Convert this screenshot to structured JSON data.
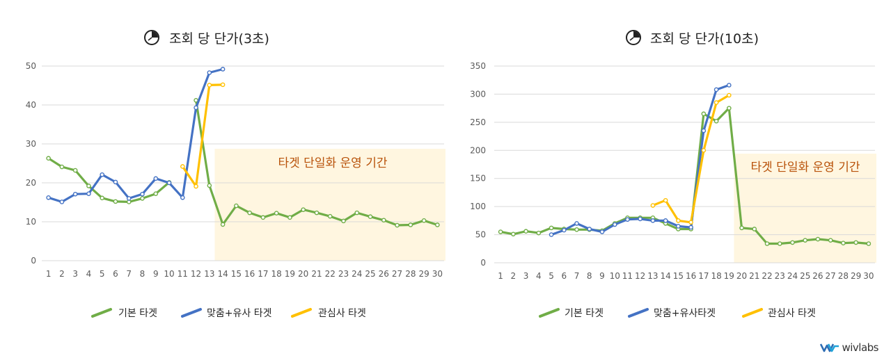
{
  "brand": {
    "logo_icon": "wv-logo-icon",
    "text": "wivlabs"
  },
  "colors": {
    "green": "#70AD47",
    "blue": "#4472C4",
    "yellow": "#FFC000",
    "band": "#FFF6E0",
    "band_text": "#B8520A",
    "grid": "#D9D9D9"
  },
  "chart_data": [
    {
      "type": "line",
      "title": "조회 당 단가(3초)",
      "title_icon": "clock-icon",
      "categories": [
        "1",
        "2",
        "3",
        "4",
        "5",
        "6",
        "7",
        "8",
        "9",
        "10",
        "11",
        "12",
        "13",
        "14",
        "15",
        "16",
        "17",
        "18",
        "19",
        "20",
        "21",
        "22",
        "23",
        "24",
        "25",
        "26",
        "27",
        "28",
        "29",
        "30"
      ],
      "ylim": [
        0,
        50
      ],
      "yticks": [
        0,
        10,
        20,
        30,
        40,
        50
      ],
      "grid": true,
      "legend_position": "bottom",
      "annotation": {
        "text": "타겟 단일화 운영 기간",
        "from_category": "14",
        "to_category": "30"
      },
      "series": [
        {
          "name": "기본 타겟",
          "color": "#70AD47",
          "values": [
            26.3,
            24.1,
            23.2,
            19.2,
            16.1,
            15.2,
            15.1,
            16.0,
            17.2,
            20.1,
            null,
            41.2,
            19.3,
            9.3,
            14.1,
            12.3,
            11.1,
            12.2,
            11.1,
            13.1,
            12.3,
            11.4,
            10.2,
            12.3,
            11.3,
            10.4,
            9.1,
            9.2,
            10.3,
            9.2
          ]
        },
        {
          "name": "맞춤+유사 타겟",
          "color": "#4472C4",
          "values": [
            16.2,
            15.1,
            17.1,
            17.2,
            22.1,
            20.2,
            16.0,
            17.1,
            21.1,
            20.0,
            16.2,
            39.3,
            48.3,
            49.2,
            null,
            null,
            null,
            null,
            null,
            null,
            null,
            null,
            null,
            null,
            null,
            null,
            null,
            null,
            null,
            null
          ]
        },
        {
          "name": "관심사 타겟",
          "color": "#FFC000",
          "values": [
            null,
            null,
            null,
            null,
            null,
            null,
            null,
            null,
            null,
            null,
            24.2,
            19.1,
            45.1,
            45.2,
            null,
            null,
            null,
            null,
            null,
            null,
            null,
            null,
            null,
            null,
            null,
            null,
            null,
            null,
            null,
            null
          ]
        }
      ]
    },
    {
      "type": "line",
      "title": "조회 당 단가(10초)",
      "title_icon": "clock-icon",
      "categories": [
        "1",
        "2",
        "3",
        "4",
        "5",
        "6",
        "7",
        "8",
        "9",
        "10",
        "11",
        "12",
        "13",
        "14",
        "15",
        "16",
        "17",
        "18",
        "19",
        "20",
        "21",
        "22",
        "23",
        "24",
        "25",
        "26",
        "27",
        "28",
        "29",
        "30"
      ],
      "ylim": [
        0,
        350
      ],
      "yticks": [
        0,
        50,
        100,
        150,
        200,
        250,
        300,
        350
      ],
      "grid": true,
      "legend_position": "bottom",
      "annotation": {
        "text": "타겟 단일화 운영 기간",
        "from_category": "20",
        "to_category": "30"
      },
      "series": [
        {
          "name": "기본 타겟",
          "color": "#70AD47",
          "values": [
            55,
            51,
            56,
            53,
            62,
            60,
            59,
            59,
            57,
            70,
            80,
            80,
            80,
            70,
            60,
            60,
            265,
            252,
            275,
            62,
            60,
            34,
            34,
            36,
            40,
            42,
            40,
            35,
            36,
            34
          ]
        },
        {
          "name": "맞춤+유사타겟",
          "color": "#4472C4",
          "values": [
            null,
            null,
            null,
            null,
            50,
            58,
            70,
            60,
            55,
            68,
            77,
            78,
            75,
            75,
            65,
            63,
            235,
            308,
            316,
            null,
            null,
            null,
            null,
            null,
            null,
            null,
            null,
            null,
            null,
            null
          ]
        },
        {
          "name": "관심사 타겟",
          "color": "#FFC000",
          "values": [
            null,
            null,
            null,
            null,
            null,
            null,
            null,
            null,
            null,
            null,
            null,
            null,
            102,
            111,
            75,
            72,
            200,
            285,
            298,
            null,
            null,
            null,
            null,
            null,
            null,
            null,
            null,
            null,
            null,
            null
          ]
        }
      ]
    }
  ]
}
